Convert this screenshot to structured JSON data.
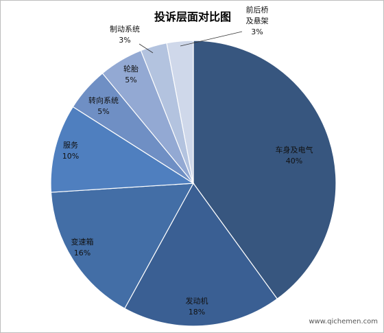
{
  "chart_data": {
    "type": "pie",
    "title": "投诉层面对比图",
    "slices": [
      {
        "label": "车身及电气",
        "value": 40,
        "value_label": "40%",
        "color": "#37567f"
      },
      {
        "label": "发动机",
        "value": 18,
        "value_label": "18%",
        "color": "#3a5f93"
      },
      {
        "label": "变速箱",
        "value": 16,
        "value_label": "16%",
        "color": "#436ea6"
      },
      {
        "label": "服务",
        "value": 10,
        "value_label": "10%",
        "color": "#4f7fbf"
      },
      {
        "label": "转向系统",
        "value": 5,
        "value_label": "5%",
        "color": "#6f8fc4"
      },
      {
        "label": "轮胎",
        "value": 5,
        "value_label": "5%",
        "color": "#93a9d3"
      },
      {
        "label": "制动系统",
        "value": 3,
        "value_label": "3%",
        "color": "#b3c3df"
      },
      {
        "label": "前后桥\n及悬架",
        "value": 3,
        "value_label": "3%",
        "color": "#cfd8ea"
      }
    ]
  },
  "watermark": "www.qichemen.com"
}
